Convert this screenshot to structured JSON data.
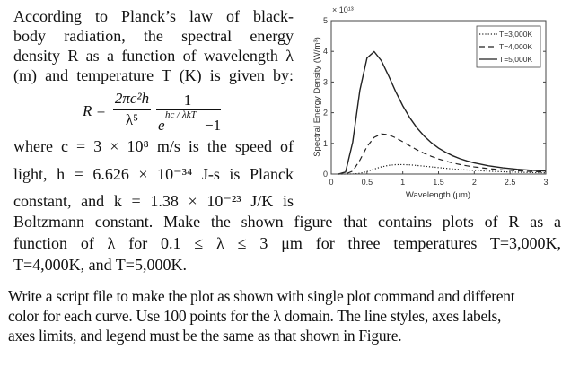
{
  "problem": {
    "lines": [
      "According to Planck’s law of black-",
      "body radiation, the spectral energy",
      "density R as a function of wavelength λ",
      "(m) and temperature T (K) is given by:"
    ],
    "formula": {
      "lhs": "R =",
      "num1": "2πc²h",
      "den1": "λ⁵",
      "num2": "1",
      "den2_base": "e",
      "den2_exp": "hc / λkT",
      "den2_tail": "−1"
    },
    "where_line": "where  c = 3 × 10⁸ m/s  is  the  speed  of",
    "light_line": "light,  h = 6.626 × 10⁻³⁴ J-s  is  Planck",
    "constant_line": "constant,  and  k = 1.38 × 10⁻²³ J/K  is",
    "boltzmann_line": "Boltzmann constant. Make the shown figure that contains plots of R as a",
    "function_line": "function  of  λ  for  0.1 ≤ λ ≤ 3 μm  for  three  temperatures  T=3,000K,",
    "last_line": "T=4,000K, and T=5,000K."
  },
  "task": {
    "lines": [
      "Write a script file to make the plot as shown with single plot command and different",
      "color for each curve. Use 100 points for the λ domain. The line styles, axes labels,",
      "axes limits, and legend must be the same as that shown in Figure."
    ]
  },
  "chart_data": {
    "type": "line",
    "xlabel": "Wavelength (μm)",
    "ylabel": "Spectral Energy Density (W/m³)",
    "y_multiplier": "× 10¹³",
    "xlim": [
      0,
      3
    ],
    "ylim": [
      0,
      5
    ],
    "xticks": [
      "0",
      "0.5",
      "1",
      "1.5",
      "2",
      "2.5",
      "3"
    ],
    "yticks": [
      "0",
      "1",
      "2",
      "3",
      "4",
      "5"
    ],
    "grid": false,
    "legend_position": "top-right",
    "x": [
      0.1,
      0.2,
      0.3,
      0.4,
      0.5,
      0.6,
      0.7,
      0.8,
      0.9,
      1.0,
      1.1,
      1.2,
      1.3,
      1.4,
      1.5,
      1.6,
      1.7,
      1.8,
      1.9,
      2.0,
      2.2,
      2.4,
      2.6,
      2.8,
      3.0
    ],
    "series": [
      {
        "name": "T=3,000K",
        "style": "dotted",
        "color": "#222222",
        "values": [
          0,
          0,
          0.0017,
          0.0224,
          0.081,
          0.161,
          0.234,
          0.283,
          0.307,
          0.31,
          0.3,
          0.28,
          0.257,
          0.233,
          0.21,
          0.187,
          0.166,
          0.148,
          0.131,
          0.117,
          0.0924,
          0.0736,
          0.0591,
          0.0478,
          0.039
        ]
      },
      {
        "name": "T=4,000K",
        "style": "dashed",
        "color": "#222222",
        "values": [
          0,
          0.0018,
          0.0946,
          0.45,
          0.894,
          1.195,
          1.308,
          1.283,
          1.182,
          1.053,
          0.916,
          0.788,
          0.675,
          0.576,
          0.492,
          0.421,
          0.361,
          0.31,
          0.268,
          0.232,
          0.176,
          0.135,
          0.105,
          0.0832,
          0.0664
        ]
      },
      {
        "name": "T=5,000K",
        "style": "solid",
        "color": "#222222",
        "values": [
          0,
          0.065,
          1.042,
          2.729,
          3.782,
          3.992,
          3.697,
          3.212,
          2.693,
          2.226,
          1.829,
          1.501,
          1.235,
          1.02,
          0.846,
          0.708,
          0.594,
          0.501,
          0.426,
          0.363,
          0.269,
          0.203,
          0.156,
          0.121,
          0.0957
        ]
      }
    ]
  }
}
